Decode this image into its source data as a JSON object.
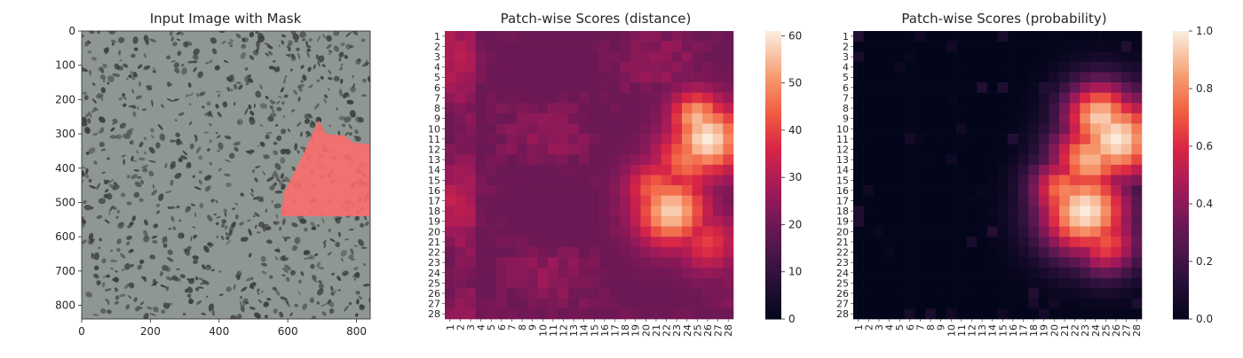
{
  "chart_data": [
    {
      "type": "image",
      "title": "Input Image with Mask",
      "xlim": [
        0,
        840
      ],
      "ylim": [
        840,
        0
      ],
      "xticks": [
        0,
        200,
        400,
        600,
        800
      ],
      "yticks": [
        0,
        100,
        200,
        300,
        400,
        500,
        600,
        700,
        800
      ],
      "background_color": "#8f9793",
      "speckle_color": "#3a3e3d",
      "mask_color": "#ff6b6b",
      "mask_polygon": [
        [
          690,
          260
        ],
        [
          710,
          300
        ],
        [
          765,
          305
        ],
        [
          790,
          325
        ],
        [
          830,
          330
        ],
        [
          840,
          330
        ],
        [
          840,
          540
        ],
        [
          580,
          540
        ],
        [
          590,
          470
        ],
        [
          640,
          370
        ],
        [
          690,
          260
        ]
      ]
    },
    {
      "type": "heatmap",
      "title": "Patch-wise Scores (distance)",
      "categories": [
        "1",
        "2",
        "3",
        "4",
        "5",
        "6",
        "7",
        "8",
        "9",
        "10",
        "11",
        "12",
        "13",
        "14",
        "15",
        "16",
        "17",
        "18",
        "19",
        "20",
        "21",
        "22",
        "23",
        "24",
        "25",
        "26",
        "27",
        "28"
      ],
      "vmin": 0,
      "vmax": 61,
      "colorbar_ticks": [
        0,
        10,
        20,
        30,
        40,
        50,
        60
      ],
      "colormap": "rocket",
      "hotspots": [
        {
          "row": 11,
          "col": 26,
          "value": 61,
          "radius": 2.4
        },
        {
          "row": 9,
          "col": 25,
          "value": 55,
          "radius": 1.8
        },
        {
          "row": 18,
          "col": 22.5,
          "value": 58,
          "radius": 2.4
        },
        {
          "row": 16,
          "col": 21,
          "value": 46,
          "radius": 2.0
        },
        {
          "row": 13,
          "col": 24,
          "value": 48,
          "radius": 2.2
        },
        {
          "row": 21,
          "col": 26,
          "value": 40,
          "radius": 2.0
        }
      ],
      "base_value": 20
    },
    {
      "type": "heatmap",
      "title": "Patch-wise Scores (probability)",
      "categories": [
        "1",
        "2",
        "3",
        "4",
        "5",
        "6",
        "7",
        "8",
        "9",
        "10",
        "11",
        "12",
        "13",
        "14",
        "15",
        "16",
        "17",
        "18",
        "19",
        "20",
        "21",
        "22",
        "23",
        "24",
        "25",
        "26",
        "27",
        "28"
      ],
      "vmin": 0.0,
      "vmax": 1.0,
      "colorbar_ticks": [
        0.0,
        0.2,
        0.4,
        0.6,
        0.8,
        1.0
      ],
      "colorbar_tick_labels": [
        "0.0",
        "0.2",
        "0.4",
        "0.6",
        "0.8",
        "1.0"
      ],
      "colormap": "rocket",
      "hotspots": [
        {
          "row": 11,
          "col": 26,
          "value": 1.0,
          "radius": 3.2
        },
        {
          "row": 9,
          "col": 24.5,
          "value": 0.95,
          "radius": 2.6
        },
        {
          "row": 18,
          "col": 23,
          "value": 1.0,
          "radius": 3.2
        },
        {
          "row": 16,
          "col": 21,
          "value": 0.8,
          "radius": 2.4
        },
        {
          "row": 13,
          "col": 23.5,
          "value": 0.9,
          "radius": 2.8
        },
        {
          "row": 21,
          "col": 25,
          "value": 0.7,
          "radius": 2.4
        }
      ],
      "base_value": 0.0
    }
  ]
}
